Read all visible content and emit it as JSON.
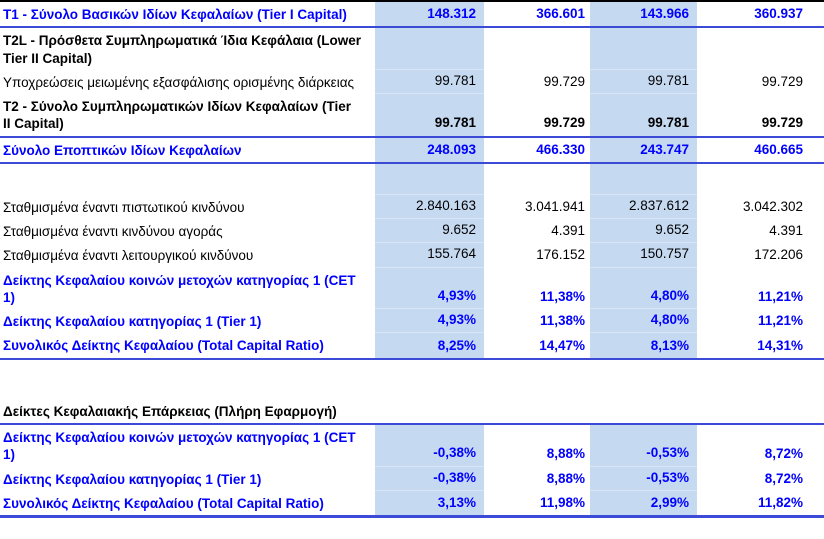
{
  "table": {
    "title": "Capital adequacy table (Greek bank regulatory capital)",
    "colors": {
      "column_highlight": "#c5d9f1",
      "blue_text": "#0000ff",
      "rule_blue": "#3b4bd8",
      "top_border": "#000000"
    },
    "rows": [
      {
        "label": "T1 - Σύνολο Βασικών Ιδίων Κεφαλαίων (Tier I Capital)",
        "values": [
          "148.312",
          "366.601",
          "143.966",
          "360.937"
        ],
        "style": "blue-bold",
        "underline": true,
        "fill": true
      },
      {
        "label": "T2L - Πρόσθετα Συμπληρωματικά Ίδια Κεφάλαια (Lower Tier II Capital)",
        "values": [
          "",
          "",
          "",
          ""
        ],
        "style": "black-bold",
        "underline": false,
        "fill": true
      },
      {
        "label": "Υποχρεώσεις μειωμένης εξασφάλισης ορισμένης διάρκειας",
        "values": [
          "99.781",
          "99.729",
          "99.781",
          "99.729"
        ],
        "style": "regular",
        "underline": false,
        "fill": true
      },
      {
        "label": "T2 - Σύνολο Συμπληρωματικών Ιδίων Κεφαλαίων (Tier II Capital)",
        "values": [
          "99.781",
          "99.729",
          "99.781",
          "99.729"
        ],
        "style": "black-bold",
        "underline": true,
        "fill": true
      },
      {
        "label": "Σύνολο Εποπτικών Ιδίων Κεφαλαίων",
        "values": [
          "248.093",
          "466.330",
          "243.747",
          "460.665"
        ],
        "style": "blue-bold",
        "underline": true,
        "fill": true
      },
      {
        "label": "",
        "values": [
          "",
          "",
          "",
          ""
        ],
        "style": "spacer",
        "underline": false,
        "fill": true
      },
      {
        "label": "Σταθμισμένα έναντι πιστωτικού κινδύνου",
        "values": [
          "2.840.163",
          "3.041.941",
          "2.837.612",
          "3.042.302"
        ],
        "style": "regular",
        "underline": false,
        "fill": true
      },
      {
        "label": "Σταθμισμένα έναντι κινδύνου αγοράς",
        "values": [
          "9.652",
          "4.391",
          "9.652",
          "4.391"
        ],
        "style": "regular",
        "underline": false,
        "fill": true
      },
      {
        "label": "Σταθμισμένα έναντι λειτουργικού κινδύνου",
        "values": [
          "155.764",
          "176.152",
          "150.757",
          "172.206"
        ],
        "style": "regular",
        "underline": false,
        "fill": true
      },
      {
        "label": "Δείκτης Κεφαλαίου κοινών μετοχών κατηγορίας 1 (CET 1)",
        "values": [
          "4,93%",
          "11,38%",
          "4,80%",
          "11,21%"
        ],
        "style": "blue-bold",
        "underline": false,
        "fill": true
      },
      {
        "label": "Δείκτης Κεφαλαίου κατηγορίας 1 (Tier 1)",
        "values": [
          "4,93%",
          "11,38%",
          "4,80%",
          "11,21%"
        ],
        "style": "blue-bold",
        "underline": false,
        "fill": true
      },
      {
        "label": "Συνολικός Δείκτης Κεφαλαίου (Total Capital Ratio)",
        "values": [
          "8,25%",
          "14,47%",
          "8,13%",
          "14,31%"
        ],
        "style": "blue-bold",
        "underline": true,
        "fill": true
      },
      {
        "label": "",
        "values": [
          "",
          "",
          "",
          ""
        ],
        "style": "gap",
        "underline": false,
        "fill": false
      },
      {
        "label": "Δείκτες Κεφαλαιακής Επάρκειας (Πλήρη Εφαρμογή)",
        "values": [
          "",
          "",
          "",
          ""
        ],
        "style": "section-header",
        "underline": true,
        "fill": false
      },
      {
        "label": "Δείκτης Κεφαλαίου κοινών μετοχών κατηγορίας 1 (CET 1)",
        "values": [
          "-0,38%",
          "8,88%",
          "-0,53%",
          "8,72%"
        ],
        "style": "blue-bold",
        "underline": false,
        "fill": true
      },
      {
        "label": "Δείκτης Κεφαλαίου κατηγορίας 1 (Tier 1)",
        "values": [
          "-0,38%",
          "8,88%",
          "-0,53%",
          "8,72%"
        ],
        "style": "blue-bold",
        "underline": false,
        "fill": true
      },
      {
        "label": "Συνολικός Δείκτης Κεφαλαίου (Total Capital Ratio)",
        "values": [
          "3,13%",
          "11,98%",
          "2,99%",
          "11,82%"
        ],
        "style": "blue-bold",
        "underline": true,
        "thick": true,
        "fill": true
      }
    ]
  }
}
